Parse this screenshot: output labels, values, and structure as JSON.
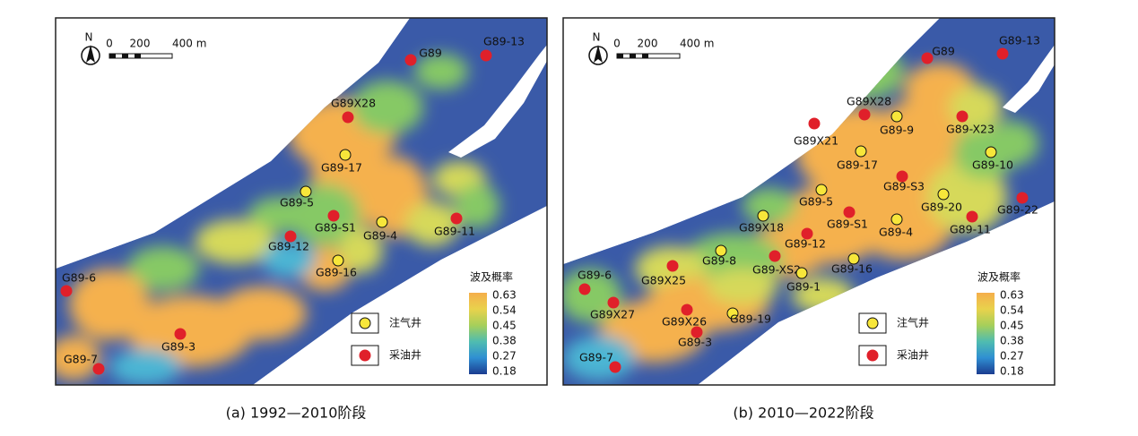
{
  "panels": [
    {
      "caption": "(a) 1992—2010阶段",
      "north": "N",
      "scale_labels": [
        "0",
        "200",
        "400 m"
      ],
      "production_wells": [
        "G89",
        "G89-13",
        "G89X28",
        "G89-S1",
        "G89-11",
        "G89-12",
        "G89-6",
        "G89-3",
        "G89-7"
      ],
      "injection_wells": [
        "G89-17",
        "G89-5",
        "G89-4",
        "G89-16"
      ],
      "legend": {
        "injection": "注气井",
        "production": "采油井"
      },
      "colorbar": {
        "title": "波及概率",
        "ticks": [
          "0.63",
          "0.54",
          "0.45",
          "0.38",
          "0.27",
          "0.18"
        ]
      }
    },
    {
      "caption": "(b) 2010—2022阶段",
      "north": "N",
      "scale_labels": [
        "0",
        "200",
        "400 m"
      ],
      "production_wells": [
        "G89",
        "G89-13",
        "G89X28",
        "G89-X23",
        "G89X21",
        "G89-S3",
        "G89-22",
        "G89-S1",
        "G89-11",
        "G89-12",
        "G89-XS2",
        "G89X25",
        "G89-6",
        "G89X27",
        "G89X26",
        "G89-3",
        "G89-7"
      ],
      "injection_wells": [
        "G89-9",
        "G89-17",
        "G89-10",
        "G89-5",
        "G89-20",
        "G89X18",
        "G89-4",
        "G89-8",
        "G89-16",
        "G89-1",
        "G89-19"
      ],
      "legend": {
        "injection": "注气井",
        "production": "采油井"
      },
      "colorbar": {
        "title": "波及概率",
        "ticks": [
          "0.63",
          "0.54",
          "0.45",
          "0.38",
          "0.27",
          "0.18"
        ]
      }
    }
  ]
}
